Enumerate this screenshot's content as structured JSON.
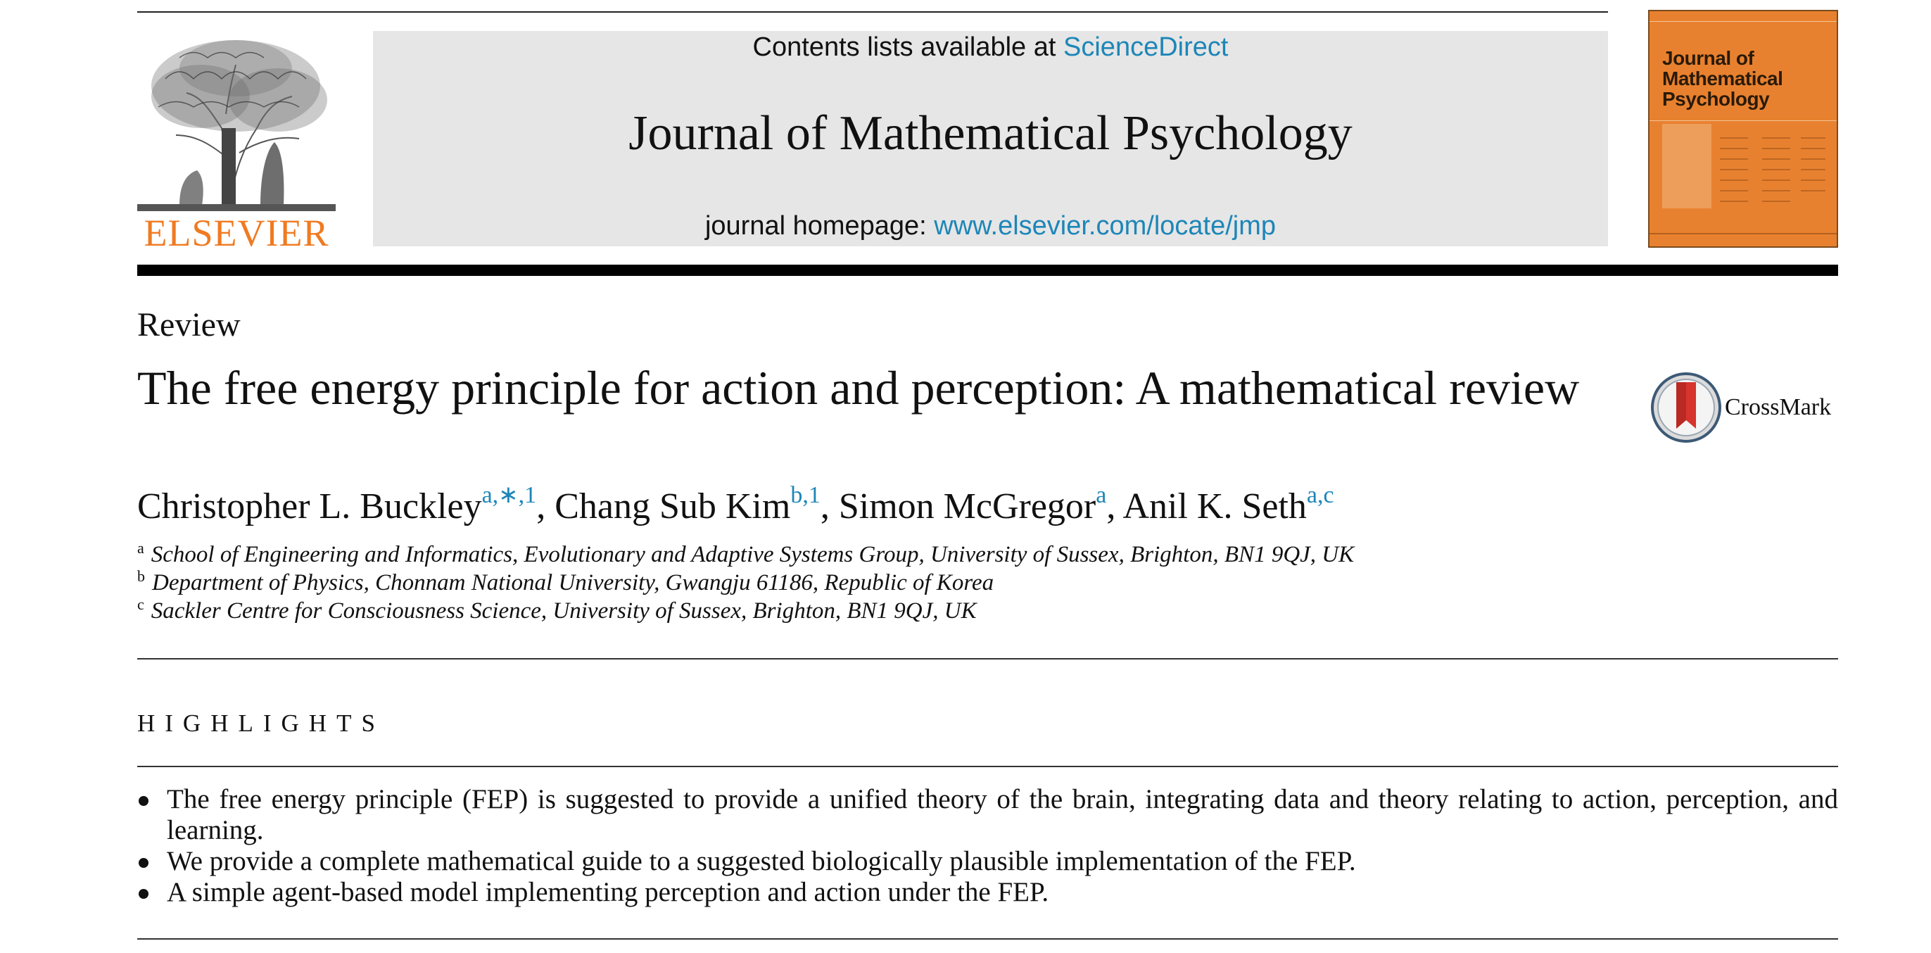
{
  "publisher": {
    "name": "ELSEVIER",
    "brand_color": "#f07a21",
    "logo_icon": "elsevier-tree-icon"
  },
  "journal_header": {
    "contents_prefix": "Contents lists available at",
    "contents_link": "ScienceDirect",
    "journal_title": "Journal of Mathematical Psychology",
    "homepage_prefix": "journal homepage:",
    "homepage_link": "www.elsevier.com/locate/jmp",
    "link_color": "#1d86b8",
    "box_color": "#e6e6e6"
  },
  "cover": {
    "title": "Journal of Mathematical Psychology",
    "color": "#e8812f"
  },
  "article": {
    "type": "Review",
    "title": "The free energy principle for action and perception: A mathematical review",
    "crossmark_label": "CrossMark",
    "authors": [
      {
        "name": "Christopher L. Buckley",
        "sup": "a,∗,1",
        "sep": ", "
      },
      {
        "name": "Chang Sub Kim",
        "sup": "b,1",
        "sep": ", "
      },
      {
        "name": "Simon McGregor",
        "sup": "a",
        "sep": ", "
      },
      {
        "name": "Anil K. Seth",
        "sup": "a,c",
        "sep": ""
      }
    ],
    "affiliations": [
      {
        "mark": "a",
        "text": "School of Engineering and Informatics, Evolutionary and Adaptive Systems Group, University of Sussex, Brighton, BN1 9QJ, UK"
      },
      {
        "mark": "b",
        "text": "Department of Physics, Chonnam National University, Gwangju 61186, Republic of Korea"
      },
      {
        "mark": "c",
        "text": "Sackler Centre for Consciousness Science, University of Sussex, Brighton, BN1 9QJ, UK"
      }
    ]
  },
  "highlights": {
    "heading": "HIGHLIGHTS",
    "items": [
      "The free energy principle (FEP) is suggested to provide a unified theory of the brain, integrating data and theory relating to action, perception, and learning.",
      "We provide a complete mathematical guide to a suggested biologically plausible implementation of the FEP.",
      "A simple agent-based model implementing perception and action under the FEP."
    ]
  }
}
